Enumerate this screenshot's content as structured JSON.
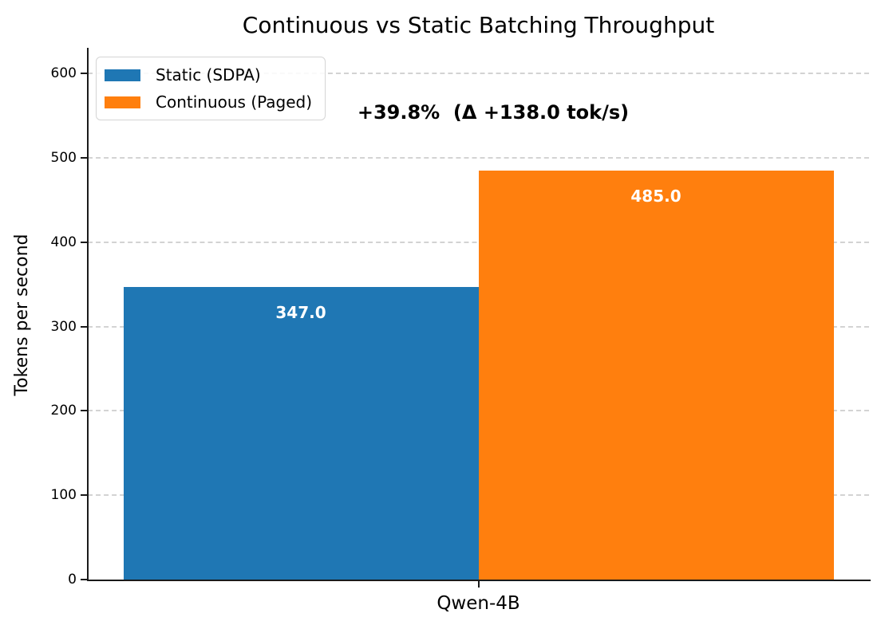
{
  "chart_data": {
    "type": "bar",
    "title": "Continuous vs Static Batching Throughput",
    "categories": [
      "Qwen-4B"
    ],
    "series": [
      {
        "name": "Static (SDPA)",
        "values": [
          347.0
        ],
        "labels": [
          "347.0"
        ],
        "color": "#1f77b4"
      },
      {
        "name": "Continuous (Paged)",
        "values": [
          485.0
        ],
        "labels": [
          "485.0"
        ],
        "color": "#ff7f0e"
      }
    ],
    "annotation": "+39.8%  (Δ +138.0 tok/s)",
    "xlabel": "",
    "ylabel": "Tokens per second",
    "yticks": [
      0,
      100,
      200,
      300,
      400,
      500,
      600
    ],
    "ylim": [
      0,
      630.5
    ],
    "grid": {
      "axis": "y",
      "style": "dashed",
      "color": "#d3d3d3"
    },
    "legend": {
      "position": "upper left"
    },
    "value_label_color": "#ffffff",
    "background": "#ffffff"
  }
}
